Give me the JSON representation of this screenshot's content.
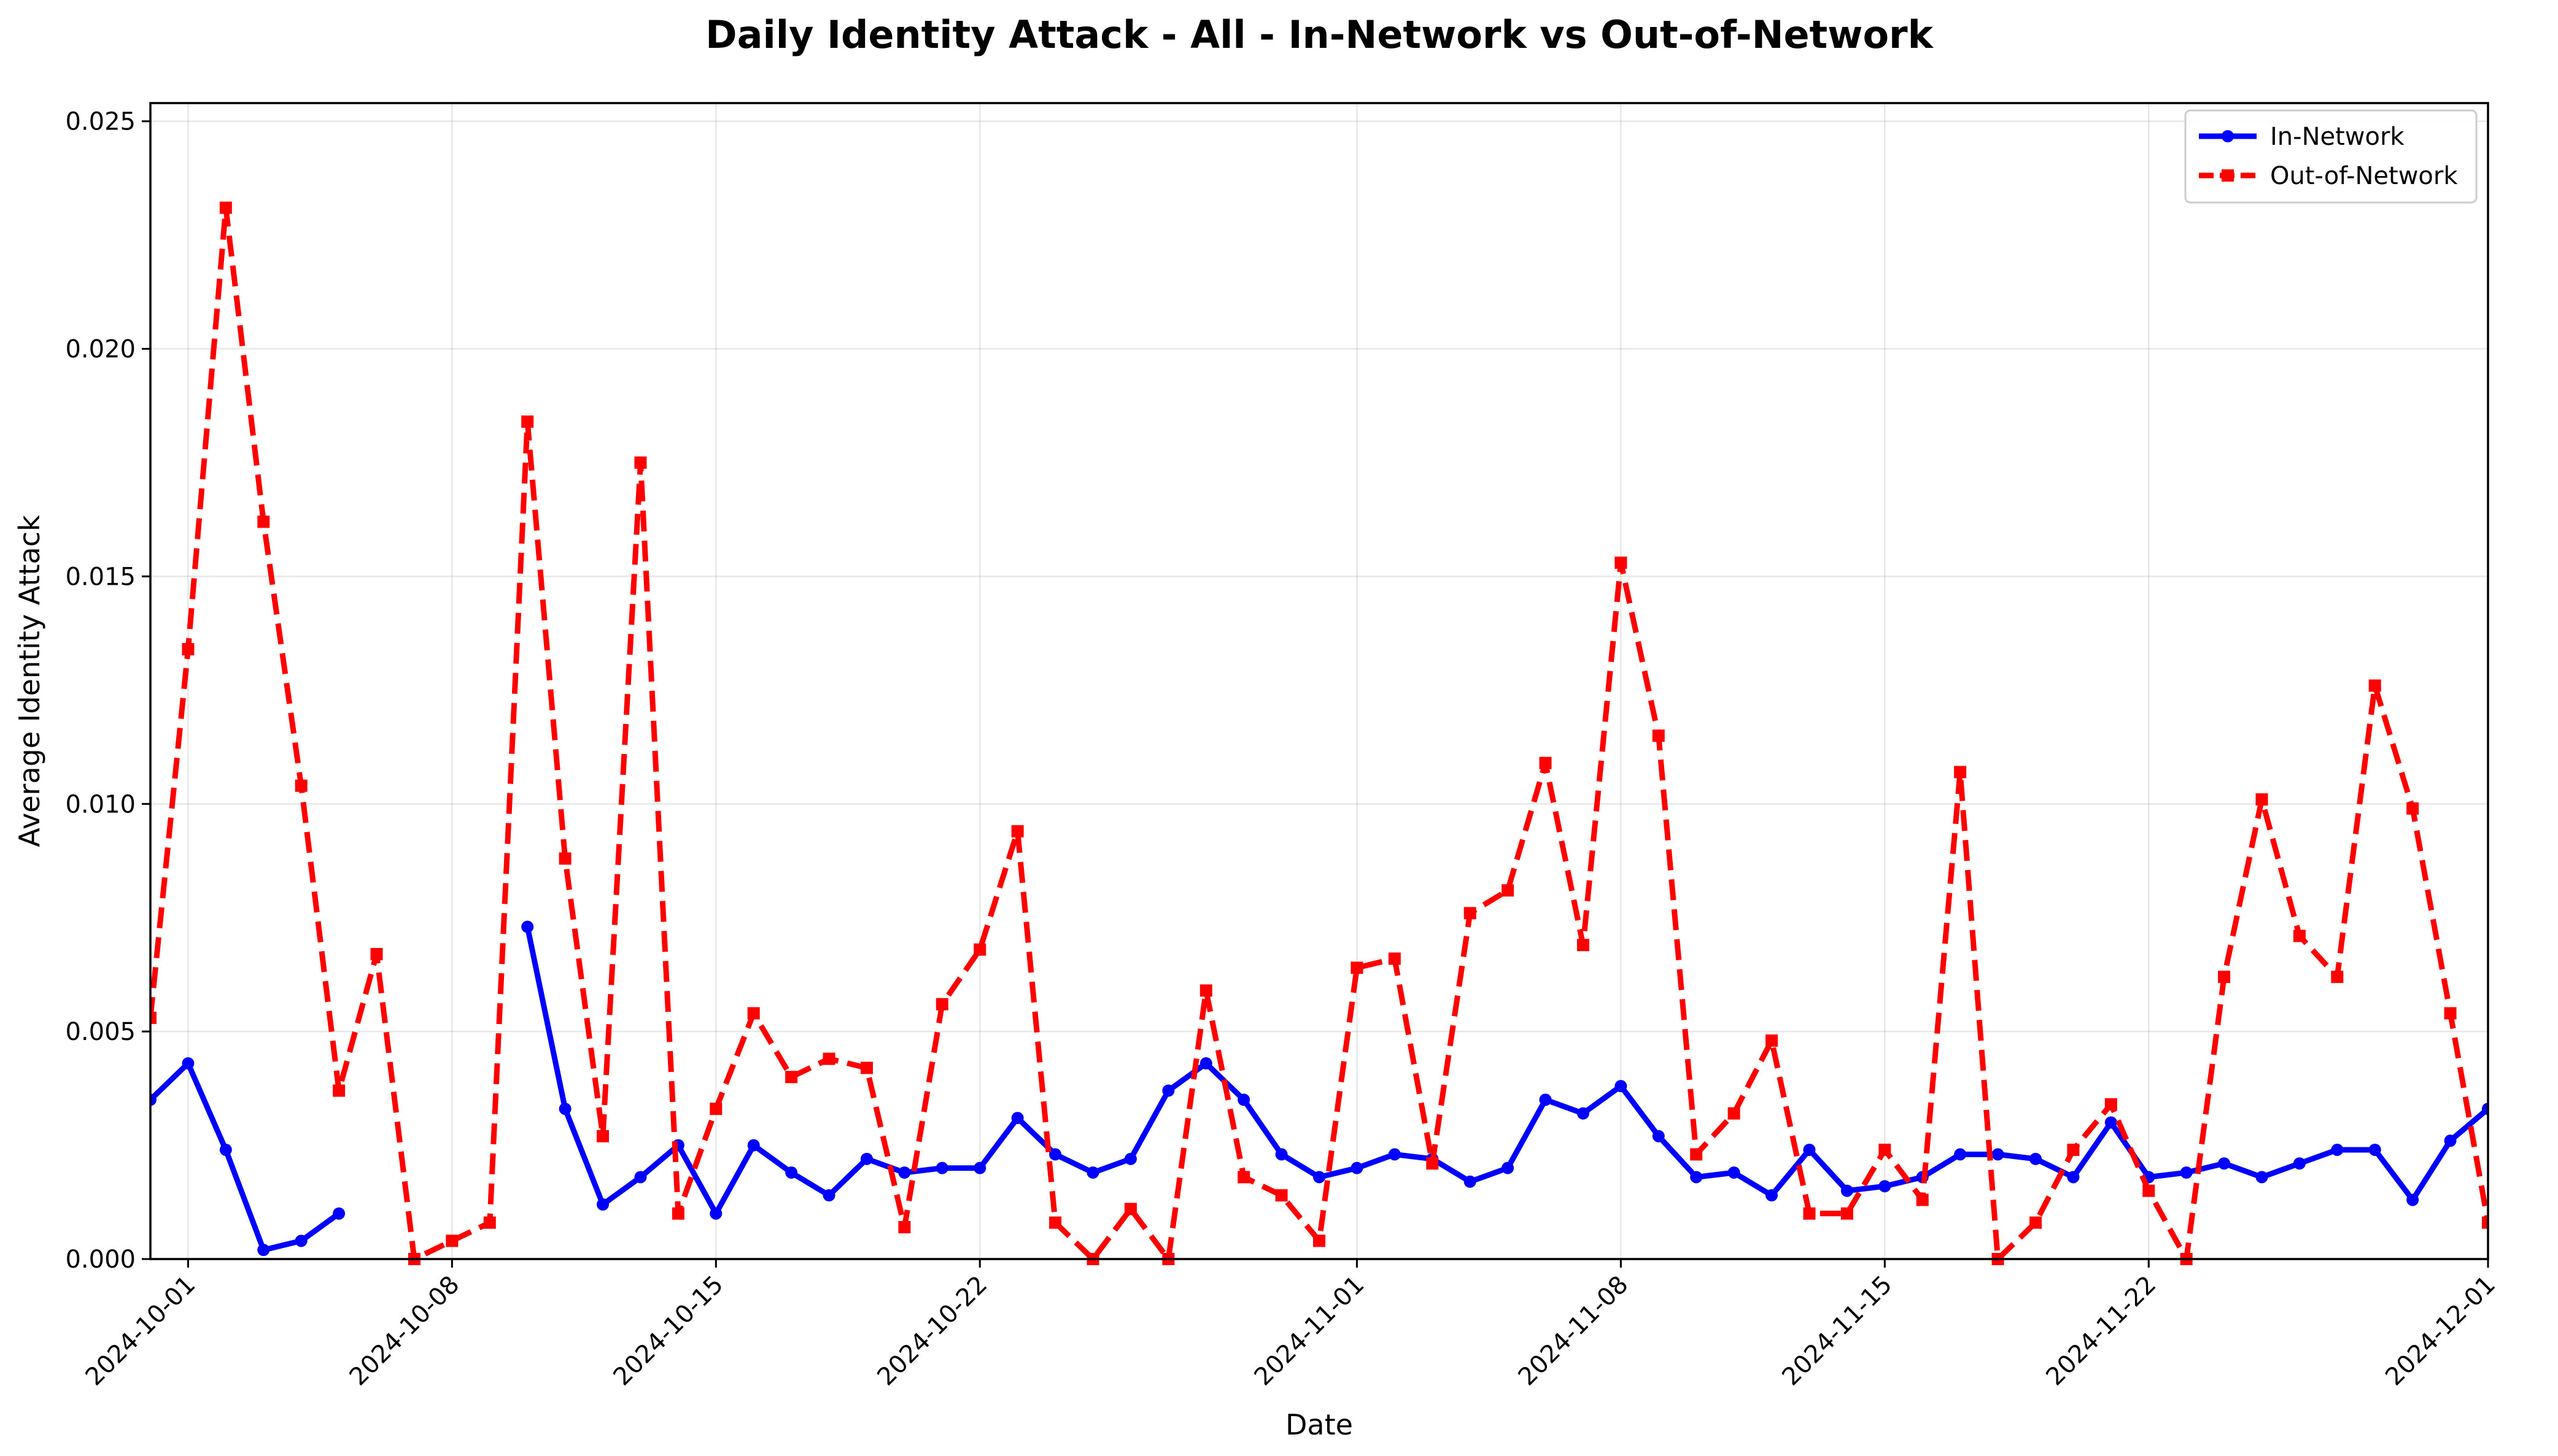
{
  "chart_data": {
    "type": "line",
    "title": "Daily Identity Attack - All - In-Network vs Out-of-Network",
    "xlabel": "Date",
    "ylabel": "Average Identity Attack",
    "xlim": [
      "2024-09-30",
      "2024-12-01"
    ],
    "ylim": [
      0,
      0.0254
    ],
    "grid": true,
    "legend_position": "top-right",
    "x_ticks": [
      "2024-10-01",
      "2024-10-08",
      "2024-10-15",
      "2024-10-22",
      "2024-11-01",
      "2024-11-08",
      "2024-11-15",
      "2024-11-22",
      "2024-12-01"
    ],
    "y_ticks": [
      "0.000",
      "0.005",
      "0.010",
      "0.015",
      "0.020",
      "0.025"
    ],
    "series": [
      {
        "name": "In-Network",
        "color": "#0000ff",
        "style": "solid",
        "marker": "circle",
        "segments": [
          [
            [
              "2024-09-30",
              0.0035
            ],
            [
              "2024-10-01",
              0.0043
            ],
            [
              "2024-10-02",
              0.0024
            ],
            [
              "2024-10-03",
              0.0002
            ],
            [
              "2024-10-04",
              0.0004
            ],
            [
              "2024-10-05",
              0.001
            ]
          ],
          [
            [
              "2024-10-10",
              0.0073
            ],
            [
              "2024-10-11",
              0.0033
            ],
            [
              "2024-10-12",
              0.0012
            ],
            [
              "2024-10-13",
              0.0018
            ],
            [
              "2024-10-14",
              0.0025
            ],
            [
              "2024-10-15",
              0.001
            ],
            [
              "2024-10-16",
              0.0025
            ],
            [
              "2024-10-17",
              0.0019
            ],
            [
              "2024-10-18",
              0.0014
            ],
            [
              "2024-10-19",
              0.0022
            ],
            [
              "2024-10-20",
              0.0019
            ],
            [
              "2024-10-21",
              0.002
            ],
            [
              "2024-10-22",
              0.002
            ],
            [
              "2024-10-23",
              0.0031
            ],
            [
              "2024-10-24",
              0.0023
            ],
            [
              "2024-10-25",
              0.0019
            ],
            [
              "2024-10-26",
              0.0022
            ],
            [
              "2024-10-27",
              0.0037
            ],
            [
              "2024-10-28",
              0.0043
            ],
            [
              "2024-10-29",
              0.0035
            ],
            [
              "2024-10-30",
              0.0023
            ],
            [
              "2024-10-31",
              0.0018
            ],
            [
              "2024-11-01",
              0.002
            ],
            [
              "2024-11-02",
              0.0023
            ],
            [
              "2024-11-03",
              0.0022
            ],
            [
              "2024-11-04",
              0.0017
            ],
            [
              "2024-11-05",
              0.002
            ],
            [
              "2024-11-06",
              0.0035
            ],
            [
              "2024-11-07",
              0.0032
            ],
            [
              "2024-11-08",
              0.0038
            ],
            [
              "2024-11-09",
              0.0027
            ],
            [
              "2024-11-10",
              0.0018
            ],
            [
              "2024-11-11",
              0.0019
            ],
            [
              "2024-11-12",
              0.0014
            ],
            [
              "2024-11-13",
              0.0024
            ],
            [
              "2024-11-14",
              0.0015
            ],
            [
              "2024-11-15",
              0.0016
            ],
            [
              "2024-11-16",
              0.0018
            ],
            [
              "2024-11-17",
              0.0023
            ],
            [
              "2024-11-18",
              0.0023
            ],
            [
              "2024-11-19",
              0.0022
            ],
            [
              "2024-11-20",
              0.0018
            ],
            [
              "2024-11-21",
              0.003
            ],
            [
              "2024-11-22",
              0.0018
            ],
            [
              "2024-11-23",
              0.0019
            ],
            [
              "2024-11-24",
              0.0021
            ],
            [
              "2024-11-25",
              0.0018
            ],
            [
              "2024-11-26",
              0.0021
            ],
            [
              "2024-11-27",
              0.0024
            ],
            [
              "2024-11-28",
              0.0024
            ],
            [
              "2024-11-29",
              0.0013
            ],
            [
              "2024-11-30",
              0.0026
            ],
            [
              "2024-12-01",
              0.0033
            ]
          ]
        ]
      },
      {
        "name": "Out-of-Network",
        "color": "#ff0000",
        "style": "dashed",
        "marker": "square",
        "segments": [
          [
            [
              "2024-09-30",
              0.0053
            ],
            [
              "2024-10-01",
              0.0134
            ],
            [
              "2024-10-02",
              0.0231
            ],
            [
              "2024-10-03",
              0.0162
            ],
            [
              "2024-10-04",
              0.0104
            ],
            [
              "2024-10-05",
              0.0037
            ],
            [
              "2024-10-06",
              0.0067
            ],
            [
              "2024-10-07",
              0.0
            ],
            [
              "2024-10-08",
              0.0004
            ],
            [
              "2024-10-09",
              0.0008
            ],
            [
              "2024-10-10",
              0.0184
            ],
            [
              "2024-10-11",
              0.0088
            ],
            [
              "2024-10-12",
              0.0027
            ],
            [
              "2024-10-13",
              0.0175
            ],
            [
              "2024-10-14",
              0.001
            ],
            [
              "2024-10-15",
              0.0033
            ],
            [
              "2024-10-16",
              0.0054
            ],
            [
              "2024-10-17",
              0.004
            ],
            [
              "2024-10-18",
              0.0044
            ],
            [
              "2024-10-19",
              0.0042
            ],
            [
              "2024-10-20",
              0.0007
            ],
            [
              "2024-10-21",
              0.0056
            ],
            [
              "2024-10-22",
              0.0068
            ],
            [
              "2024-10-23",
              0.0094
            ],
            [
              "2024-10-24",
              0.0008
            ],
            [
              "2024-10-25",
              0.0
            ],
            [
              "2024-10-26",
              0.0011
            ],
            [
              "2024-10-27",
              0.0
            ],
            [
              "2024-10-28",
              0.0059
            ],
            [
              "2024-10-29",
              0.0018
            ],
            [
              "2024-10-30",
              0.0014
            ],
            [
              "2024-10-31",
              0.0004
            ],
            [
              "2024-11-01",
              0.0064
            ],
            [
              "2024-11-02",
              0.0066
            ],
            [
              "2024-11-03",
              0.0021
            ],
            [
              "2024-11-04",
              0.0076
            ],
            [
              "2024-11-05",
              0.0081
            ],
            [
              "2024-11-06",
              0.0109
            ],
            [
              "2024-11-07",
              0.0069
            ],
            [
              "2024-11-08",
              0.0153
            ],
            [
              "2024-11-09",
              0.0115
            ],
            [
              "2024-11-10",
              0.0023
            ],
            [
              "2024-11-11",
              0.0032
            ],
            [
              "2024-11-12",
              0.0048
            ],
            [
              "2024-11-13",
              0.001
            ],
            [
              "2024-11-14",
              0.001
            ],
            [
              "2024-11-15",
              0.0024
            ],
            [
              "2024-11-16",
              0.0013
            ],
            [
              "2024-11-17",
              0.0107
            ],
            [
              "2024-11-18",
              0.0
            ],
            [
              "2024-11-19",
              0.0008
            ],
            [
              "2024-11-20",
              0.0024
            ],
            [
              "2024-11-21",
              0.0034
            ],
            [
              "2024-11-22",
              0.0015
            ],
            [
              "2024-11-23",
              0.0
            ],
            [
              "2024-11-24",
              0.0062
            ],
            [
              "2024-11-25",
              0.0101
            ],
            [
              "2024-11-26",
              0.0071
            ],
            [
              "2024-11-27",
              0.0062
            ],
            [
              "2024-11-28",
              0.0126
            ],
            [
              "2024-11-29",
              0.0099
            ],
            [
              "2024-11-30",
              0.0054
            ],
            [
              "2024-12-01",
              0.0008
            ]
          ]
        ]
      }
    ]
  }
}
